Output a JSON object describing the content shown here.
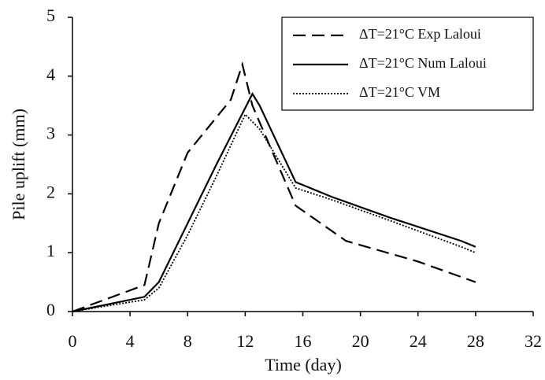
{
  "chart_data": {
    "type": "line",
    "xlabel": "Time (day)",
    "ylabel": "Pile uplift (mm)",
    "xlim": [
      0,
      32
    ],
    "xticks": [
      0,
      4,
      8,
      12,
      16,
      20,
      24,
      28,
      32
    ],
    "ylim": [
      0,
      5
    ],
    "yticks": [
      0,
      1,
      2,
      3,
      4,
      5
    ],
    "grid": false,
    "legend": "top-right",
    "series": [
      {
        "name": "ΔT=21°C Exp Laloui",
        "color": "#000000",
        "style": "dashed",
        "x": [
          0,
          5,
          6,
          8,
          11,
          11.8,
          12.5,
          15.5,
          19,
          24,
          28
        ],
        "values": [
          0,
          0.45,
          1.5,
          2.7,
          3.6,
          4.2,
          3.5,
          1.8,
          1.2,
          0.85,
          0.5
        ]
      },
      {
        "name": "ΔT=21°C Num Laloui",
        "color": "#000000",
        "style": "solid",
        "x": [
          0,
          5,
          6,
          8,
          10,
          12.5,
          13,
          15.5,
          18,
          22,
          27,
          28
        ],
        "values": [
          0,
          0.25,
          0.5,
          1.5,
          2.5,
          3.7,
          3.5,
          2.2,
          1.95,
          1.6,
          1.2,
          1.1
        ]
      },
      {
        "name": "ΔT=21°C VM",
        "color": "#000000",
        "style": "dotted",
        "x": [
          0,
          5,
          6,
          8,
          10,
          12,
          13,
          15.5,
          18,
          22,
          27,
          28
        ],
        "values": [
          0,
          0.2,
          0.4,
          1.3,
          2.3,
          3.35,
          3.1,
          2.1,
          1.9,
          1.55,
          1.1,
          1.0
        ]
      }
    ]
  }
}
